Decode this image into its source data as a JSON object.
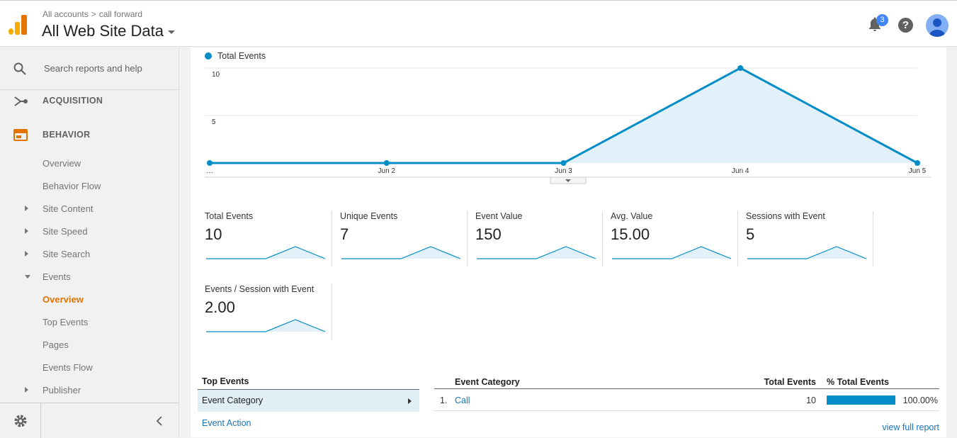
{
  "header": {
    "breadcrumb_account": "All accounts",
    "breadcrumb_property": "call forward",
    "view_title": "All Web Site Data",
    "notification_count": "3",
    "help_label": "?"
  },
  "sidebar": {
    "search_placeholder": "Search reports and help",
    "acquisition": "ACQUISITION",
    "behavior": "BEHAVIOR",
    "items": [
      {
        "label": "Overview"
      },
      {
        "label": "Behavior Flow"
      },
      {
        "label": "Site Content"
      },
      {
        "label": "Site Speed"
      },
      {
        "label": "Site Search"
      },
      {
        "label": "Events"
      },
      {
        "label": "Overview"
      },
      {
        "label": "Top Events"
      },
      {
        "label": "Pages"
      },
      {
        "label": "Events Flow"
      },
      {
        "label": "Publisher"
      }
    ]
  },
  "chart_data": {
    "type": "area",
    "series": [
      {
        "name": "Total Events",
        "values": [
          0,
          0,
          0,
          10,
          0
        ]
      }
    ],
    "categories": [
      "…",
      "Jun 2",
      "Jun 3",
      "Jun 4",
      "Jun 5"
    ],
    "yticks": [
      "10",
      "5"
    ],
    "ylim": [
      0,
      10
    ],
    "color": "#058dc7",
    "fill": "#e1f0f9",
    "legend": "top-left",
    "grid": true
  },
  "metrics": [
    {
      "label": "Total Events",
      "value": "10"
    },
    {
      "label": "Unique Events",
      "value": "7"
    },
    {
      "label": "Event Value",
      "value": "150"
    },
    {
      "label": "Avg. Value",
      "value": "15.00"
    },
    {
      "label": "Sessions with Event",
      "value": "5"
    },
    {
      "label": "Events / Session with Event",
      "value": "2.00"
    }
  ],
  "top_events": {
    "heading": "Top Events",
    "selected": "Event Category",
    "other": "Event Action"
  },
  "table": {
    "col_category": "Event Category",
    "col_total": "Total Events",
    "col_pct": "% Total Events",
    "rows": [
      {
        "index": "1.",
        "category": "Call",
        "total": "10",
        "pct": "100.00%",
        "pct_value": 100
      }
    ],
    "full_report": "view full report"
  }
}
